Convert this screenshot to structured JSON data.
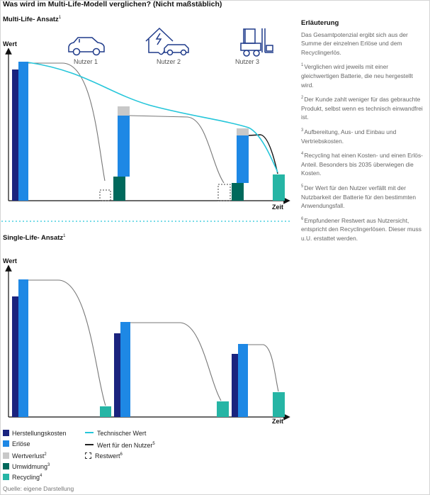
{
  "title": "Was wird im Multi-Life-Modell verglichen? (Nicht maßstäblich)",
  "multi": {
    "title": "Multi-Life- Ansatz",
    "title_sup": "1",
    "y_label": "Wert",
    "x_label": "Zeit",
    "users": [
      "Nutzer 1",
      "Nutzer 2",
      "Nutzer 3"
    ],
    "icons": [
      "car-icon",
      "house-charging-car-icon",
      "forklift-icon"
    ]
  },
  "single": {
    "title": "Single-Life- Ansatz",
    "title_sup": "1",
    "y_label": "Wert",
    "x_label": "Zeit"
  },
  "explanation": {
    "heading": "Erläuterung",
    "intro": "Das Gesamtpotenzial ergibt sich aus der Summe der einzelnen Erlöse und dem Recyclingerlös.",
    "notes": [
      {
        "n": "1",
        "text": "Verglichen wird jeweils mit einer gleichwertigen Batterie, die neu hergestellt wird."
      },
      {
        "n": "2",
        "text": "Der Kunde zahlt weniger für das gebrauchte Produkt, selbst wenn es technisch einwandfrei ist."
      },
      {
        "n": "3",
        "text": "Aufbereitung, Aus- und Einbau und Vertriebskosten."
      },
      {
        "n": "4",
        "text": "Recycling hat einen Kosten- und einen Erlös-Anteil. Besonders bis 2035 überwiegen die Kosten."
      },
      {
        "n": "5",
        "text": "Der Wert für den Nutzer verfällt mit der Nutzbarkeit der Batterie für den bestimmten Anwendungsfall."
      },
      {
        "n": "6",
        "text": "Empfundener Restwert aus Nutzersicht, entspricht den Recyclingerlösen. Dieser muss u.U. erstattet werden."
      }
    ]
  },
  "legend": {
    "herstellungskosten": "Herstellungskosten",
    "erloese": "Erlöse",
    "wertverlust": "Wertverlust",
    "wertverlust_sup": "2",
    "umwidmung": "Umwidmung",
    "umwidmung_sup": "3",
    "recycling": "Recycling",
    "recycling_sup": "4",
    "technischer_wert": "Technischer Wert",
    "wert_nutzer": "Wert für den Nutzer",
    "wert_nutzer_sup": "5",
    "restwert": "Restwert",
    "restwert_sup": "6"
  },
  "colors": {
    "herstellungskosten": "#1a237e",
    "erloese": "#1e88e5",
    "wertverlust": "#c8c8c8",
    "umwidmung": "#00695c",
    "recycling": "#26b5a5",
    "technischer_wert": "#26c6da",
    "wert_nutzer": "#222222"
  },
  "source": "Quelle: eigene Darstellung"
}
